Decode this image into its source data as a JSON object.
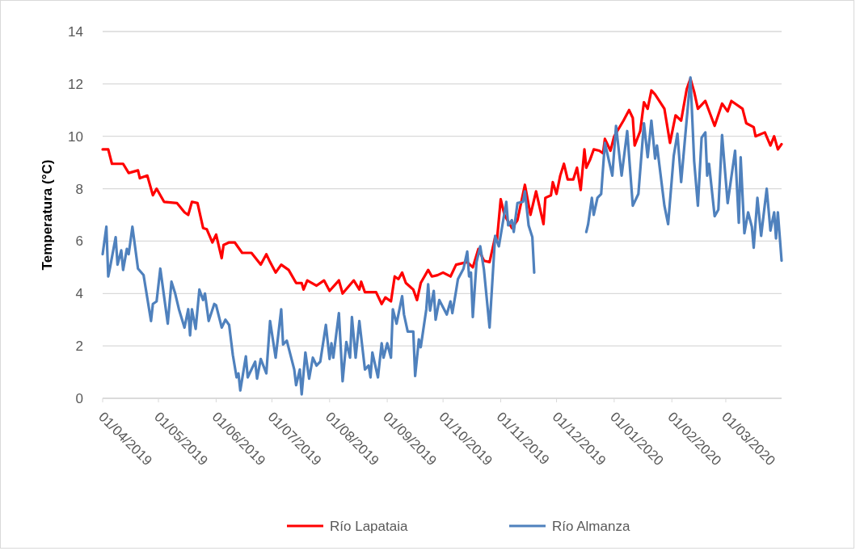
{
  "chart_data": {
    "type": "line",
    "ylabel": "Temperatura (°C)",
    "ylim": [
      0,
      14
    ],
    "yticks": [
      0,
      2,
      4,
      6,
      8,
      10,
      12,
      14
    ],
    "xlim": [
      "2019-04-01",
      "2020-03-31"
    ],
    "xticks": [
      {
        "value": "2019-04-01",
        "label": "01/04/2019"
      },
      {
        "value": "2019-05-01",
        "label": "01/05/2019"
      },
      {
        "value": "2019-06-01",
        "label": "01/06/2019"
      },
      {
        "value": "2019-07-01",
        "label": "01/07/2019"
      },
      {
        "value": "2019-08-01",
        "label": "01/08/2019"
      },
      {
        "value": "2019-09-01",
        "label": "01/09/2019"
      },
      {
        "value": "2019-10-01",
        "label": "01/10/2019"
      },
      {
        "value": "2019-11-01",
        "label": "01/11/2019"
      },
      {
        "value": "2019-12-01",
        "label": "01/12/2019"
      },
      {
        "value": "2020-01-01",
        "label": "01/01/2020"
      },
      {
        "value": "2020-02-01",
        "label": "01/02/2020"
      },
      {
        "value": "2020-03-01",
        "label": "01/03/2020"
      }
    ],
    "grid": "y",
    "legend": "bottom",
    "marker": "none",
    "line_style": "solid",
    "series": [
      {
        "name": "Río Lapataia",
        "color": "#ff0000",
        "x": [
          "2019-04-01",
          "2019-04-04",
          "2019-04-06",
          "2019-04-12",
          "2019-04-15",
          "2019-04-20",
          "2019-04-21",
          "2019-04-25",
          "2019-04-28",
          "2019-04-30",
          "2019-05-04",
          "2019-05-11",
          "2019-05-15",
          "2019-05-17",
          "2019-05-19",
          "2019-05-22",
          "2019-05-25",
          "2019-05-27",
          "2019-05-30",
          "2019-06-01",
          "2019-06-04",
          "2019-06-05",
          "2019-06-08",
          "2019-06-11",
          "2019-06-15",
          "2019-06-20",
          "2019-06-25",
          "2019-06-28",
          "2019-06-30",
          "2019-07-03",
          "2019-07-06",
          "2019-07-10",
          "2019-07-14",
          "2019-07-17",
          "2019-07-18",
          "2019-07-20",
          "2019-07-25",
          "2019-07-29",
          "2019-08-01",
          "2019-08-06",
          "2019-08-08",
          "2019-08-14",
          "2019-08-17",
          "2019-08-18",
          "2019-08-20",
          "2019-08-26",
          "2019-08-29",
          "2019-08-31",
          "2019-09-03",
          "2019-09-05",
          "2019-09-07",
          "2019-09-09",
          "2019-09-11",
          "2019-09-15",
          "2019-09-17",
          "2019-09-19",
          "2019-09-23",
          "2019-09-25",
          "2019-09-28",
          "2019-10-01",
          "2019-10-05",
          "2019-10-08",
          "2019-10-14",
          "2019-10-17",
          "2019-10-20",
          "2019-10-23",
          "2019-10-26",
          "2019-10-29",
          "2019-10-30",
          "2019-11-01",
          "2019-11-03",
          "2019-11-07",
          "2019-11-10",
          "2019-11-14",
          "2019-11-17",
          "2019-11-20",
          "2019-11-24",
          "2019-11-25",
          "2019-11-28",
          "2019-11-29",
          "2019-12-01",
          "2019-12-03",
          "2019-12-05",
          "2019-12-07",
          "2019-12-10",
          "2019-12-12",
          "2019-12-14",
          "2019-12-16",
          "2019-12-17",
          "2019-12-19",
          "2019-12-21",
          "2019-12-24",
          "2019-12-26",
          "2019-12-27",
          "2019-12-30",
          "2020-01-01",
          "2020-01-06",
          "2020-01-09",
          "2020-01-11",
          "2020-01-12",
          "2020-01-15",
          "2020-01-17",
          "2020-01-19",
          "2020-01-21",
          "2020-01-23",
          "2020-01-28",
          "2020-01-31",
          "2020-02-03",
          "2020-02-06",
          "2020-02-09",
          "2020-02-11",
          "2020-02-13",
          "2020-02-15",
          "2020-02-19",
          "2020-02-24",
          "2020-02-28",
          "2020-03-02",
          "2020-03-04",
          "2020-03-10",
          "2020-03-12",
          "2020-03-16",
          "2020-03-17",
          "2020-03-22",
          "2020-03-25",
          "2020-03-27",
          "2020-03-29",
          "2020-03-31"
        ],
        "values": [
          9.5,
          9.5,
          8.95,
          8.95,
          8.6,
          8.7,
          8.4,
          8.5,
          7.75,
          8.0,
          7.5,
          7.45,
          7.1,
          7.0,
          7.5,
          7.45,
          6.5,
          6.45,
          5.95,
          6.25,
          5.35,
          5.85,
          5.95,
          5.95,
          5.55,
          5.55,
          5.1,
          5.5,
          5.2,
          4.8,
          5.1,
          4.9,
          4.4,
          4.4,
          4.15,
          4.5,
          4.3,
          4.5,
          4.1,
          4.5,
          4.0,
          4.5,
          4.15,
          4.45,
          4.05,
          4.05,
          3.6,
          3.85,
          3.7,
          4.65,
          4.55,
          4.8,
          4.4,
          4.15,
          3.75,
          4.4,
          4.9,
          4.65,
          4.7,
          4.8,
          4.65,
          5.1,
          5.2,
          5.0,
          5.7,
          5.25,
          5.2,
          6.15,
          6.05,
          7.6,
          7.0,
          6.5,
          6.8,
          8.15,
          7.0,
          7.9,
          6.65,
          7.65,
          7.75,
          8.25,
          7.8,
          8.5,
          8.95,
          8.35,
          8.35,
          8.8,
          7.95,
          9.5,
          8.8,
          9.1,
          9.5,
          9.45,
          9.35,
          9.9,
          9.45,
          10.0,
          10.6,
          11.0,
          10.7,
          9.65,
          10.2,
          11.3,
          11.05,
          11.75,
          11.6,
          11.05,
          9.75,
          10.8,
          10.6,
          11.8,
          12.2,
          11.7,
          11.05,
          11.35,
          10.4,
          11.25,
          10.95,
          11.35,
          11.05,
          10.5,
          10.35,
          10.0,
          10.15,
          9.65,
          10.0,
          9.5,
          9.7
        ]
      },
      {
        "name": "Río Almanza",
        "color": "#4f81bd",
        "x": [
          "2019-04-01",
          "2019-04-03",
          "2019-04-04",
          "2019-04-05",
          "2019-04-08",
          "2019-04-09",
          "2019-04-11",
          "2019-04-12",
          "2019-04-14",
          "2019-04-15",
          "2019-04-17",
          "2019-04-20",
          "2019-04-23",
          "2019-04-27",
          "2019-04-28",
          "2019-04-30",
          "2019-05-02",
          "2019-05-06",
          "2019-05-08",
          "2019-05-10",
          "2019-05-12",
          "2019-05-15",
          "2019-05-17",
          "2019-05-18",
          "2019-05-19",
          "2019-05-21",
          "2019-05-23",
          "2019-05-25",
          "2019-05-26",
          "2019-05-28",
          "2019-05-31",
          "2019-06-01",
          "2019-06-04",
          "2019-06-06",
          "2019-06-08",
          "2019-06-10",
          "2019-06-12",
          "2019-06-13",
          "2019-06-14",
          "2019-06-17",
          "2019-06-18",
          "2019-06-22",
          "2019-06-23",
          "2019-06-25",
          "2019-06-28",
          "2019-06-30",
          "2019-07-03",
          "2019-07-06",
          "2019-07-07",
          "2019-07-09",
          "2019-07-13",
          "2019-07-14",
          "2019-07-16",
          "2019-07-17",
          "2019-07-19",
          "2019-07-21",
          "2019-07-23",
          "2019-07-25",
          "2019-07-27",
          "2019-07-30",
          "2019-08-01",
          "2019-08-02",
          "2019-08-03",
          "2019-08-06",
          "2019-08-08",
          "2019-08-10",
          "2019-08-12",
          "2019-08-13",
          "2019-08-15",
          "2019-08-17",
          "2019-08-20",
          "2019-08-22",
          "2019-08-23",
          "2019-08-24",
          "2019-08-27",
          "2019-08-29",
          "2019-08-30",
          "2019-09-01",
          "2019-09-03",
          "2019-09-04",
          "2019-09-06",
          "2019-09-09",
          "2019-09-10",
          "2019-09-12",
          "2019-09-15",
          "2019-09-16",
          "2019-09-18",
          "2019-09-19",
          "2019-09-22",
          "2019-09-23",
          "2019-09-24",
          "2019-09-26",
          "2019-09-27",
          "2019-09-29",
          "2019-10-03",
          "2019-10-05",
          "2019-10-06",
          "2019-10-08",
          "2019-10-09",
          "2019-10-12",
          "2019-10-14",
          "2019-10-15",
          "2019-10-16",
          "2019-10-17",
          "2019-10-19",
          "2019-10-21",
          "2019-10-23",
          "2019-10-26",
          "2019-10-29",
          "2019-10-31",
          "2019-11-04",
          "2019-11-05",
          "2019-11-07",
          "2019-11-08",
          "2019-11-10",
          "2019-11-13",
          "2019-11-14",
          "2019-11-16",
          "2019-11-18",
          "2019-11-19",
          "2019-12-01",
          "2019-12-17",
          "2019-12-18",
          "2019-12-20",
          "2019-12-21",
          "2019-12-23",
          "2019-12-25",
          "2019-12-27",
          "2019-12-31",
          "2020-01-02",
          "2020-01-05",
          "2020-01-08",
          "2020-01-11",
          "2020-01-14",
          "2020-01-17",
          "2020-01-19",
          "2020-01-21",
          "2020-01-23",
          "2020-01-24",
          "2020-01-28",
          "2020-01-30",
          "2020-02-02",
          "2020-02-04",
          "2020-02-06",
          "2020-02-11",
          "2020-02-13",
          "2020-02-15",
          "2020-02-17",
          "2020-02-19",
          "2020-02-20",
          "2020-02-21",
          "2020-02-24",
          "2020-02-26",
          "2020-02-28",
          "2020-03-02",
          "2020-03-06",
          "2020-03-08",
          "2020-03-09",
          "2020-03-11",
          "2020-03-13",
          "2020-03-15",
          "2020-03-16",
          "2020-03-18",
          "2020-03-20",
          "2020-03-23",
          "2020-03-25",
          "2020-03-27",
          "2020-03-28",
          "2020-03-29",
          "2020-03-31"
        ],
        "values": [
          5.5,
          6.55,
          4.65,
          5.0,
          6.15,
          5.1,
          5.65,
          4.9,
          5.7,
          5.5,
          6.55,
          4.95,
          4.7,
          2.95,
          3.6,
          3.7,
          4.95,
          2.85,
          4.45,
          4.0,
          3.4,
          2.7,
          3.4,
          2.4,
          3.4,
          2.65,
          4.15,
          3.75,
          4.0,
          2.95,
          3.6,
          3.55,
          2.7,
          3.0,
          2.8,
          1.65,
          0.8,
          0.95,
          0.3,
          1.6,
          0.8,
          1.4,
          0.75,
          1.5,
          0.95,
          2.95,
          1.55,
          3.4,
          2.05,
          2.2,
          1.1,
          0.5,
          1.1,
          0.15,
          1.75,
          0.75,
          1.55,
          1.25,
          1.4,
          2.8,
          1.5,
          2.1,
          1.55,
          3.25,
          0.65,
          2.15,
          1.55,
          3.1,
          1.55,
          2.95,
          1.1,
          1.25,
          0.8,
          1.75,
          0.8,
          2.1,
          1.55,
          2.1,
          1.55,
          3.4,
          2.85,
          3.9,
          3.2,
          2.55,
          2.55,
          0.85,
          2.25,
          1.95,
          3.4,
          4.35,
          3.35,
          4.1,
          3.0,
          3.75,
          3.2,
          3.7,
          3.25,
          4.1,
          4.55,
          4.95,
          5.6,
          4.65,
          4.8,
          3.1,
          5.2,
          5.8,
          4.9,
          2.7,
          6.2,
          5.8,
          7.5,
          6.6,
          6.8,
          6.35,
          7.45,
          7.5,
          7.9,
          6.6,
          6.15,
          4.8,
          null,
          6.35,
          6.65,
          7.65,
          7.0,
          7.65,
          7.8,
          9.75,
          8.5,
          10.4,
          8.5,
          10.2,
          7.35,
          7.8,
          10.5,
          9.2,
          10.6,
          9.15,
          9.65,
          7.35,
          6.65,
          9.25,
          10.1,
          8.25,
          12.25,
          9.05,
          7.35,
          9.95,
          10.15,
          8.5,
          8.95,
          6.95,
          7.2,
          10.05,
          7.45,
          9.45,
          6.7,
          9.2,
          6.3,
          7.1,
          6.55,
          5.75,
          7.65,
          6.2,
          8.0,
          6.4,
          7.1,
          6.1,
          7.1,
          5.25
        ]
      }
    ]
  }
}
